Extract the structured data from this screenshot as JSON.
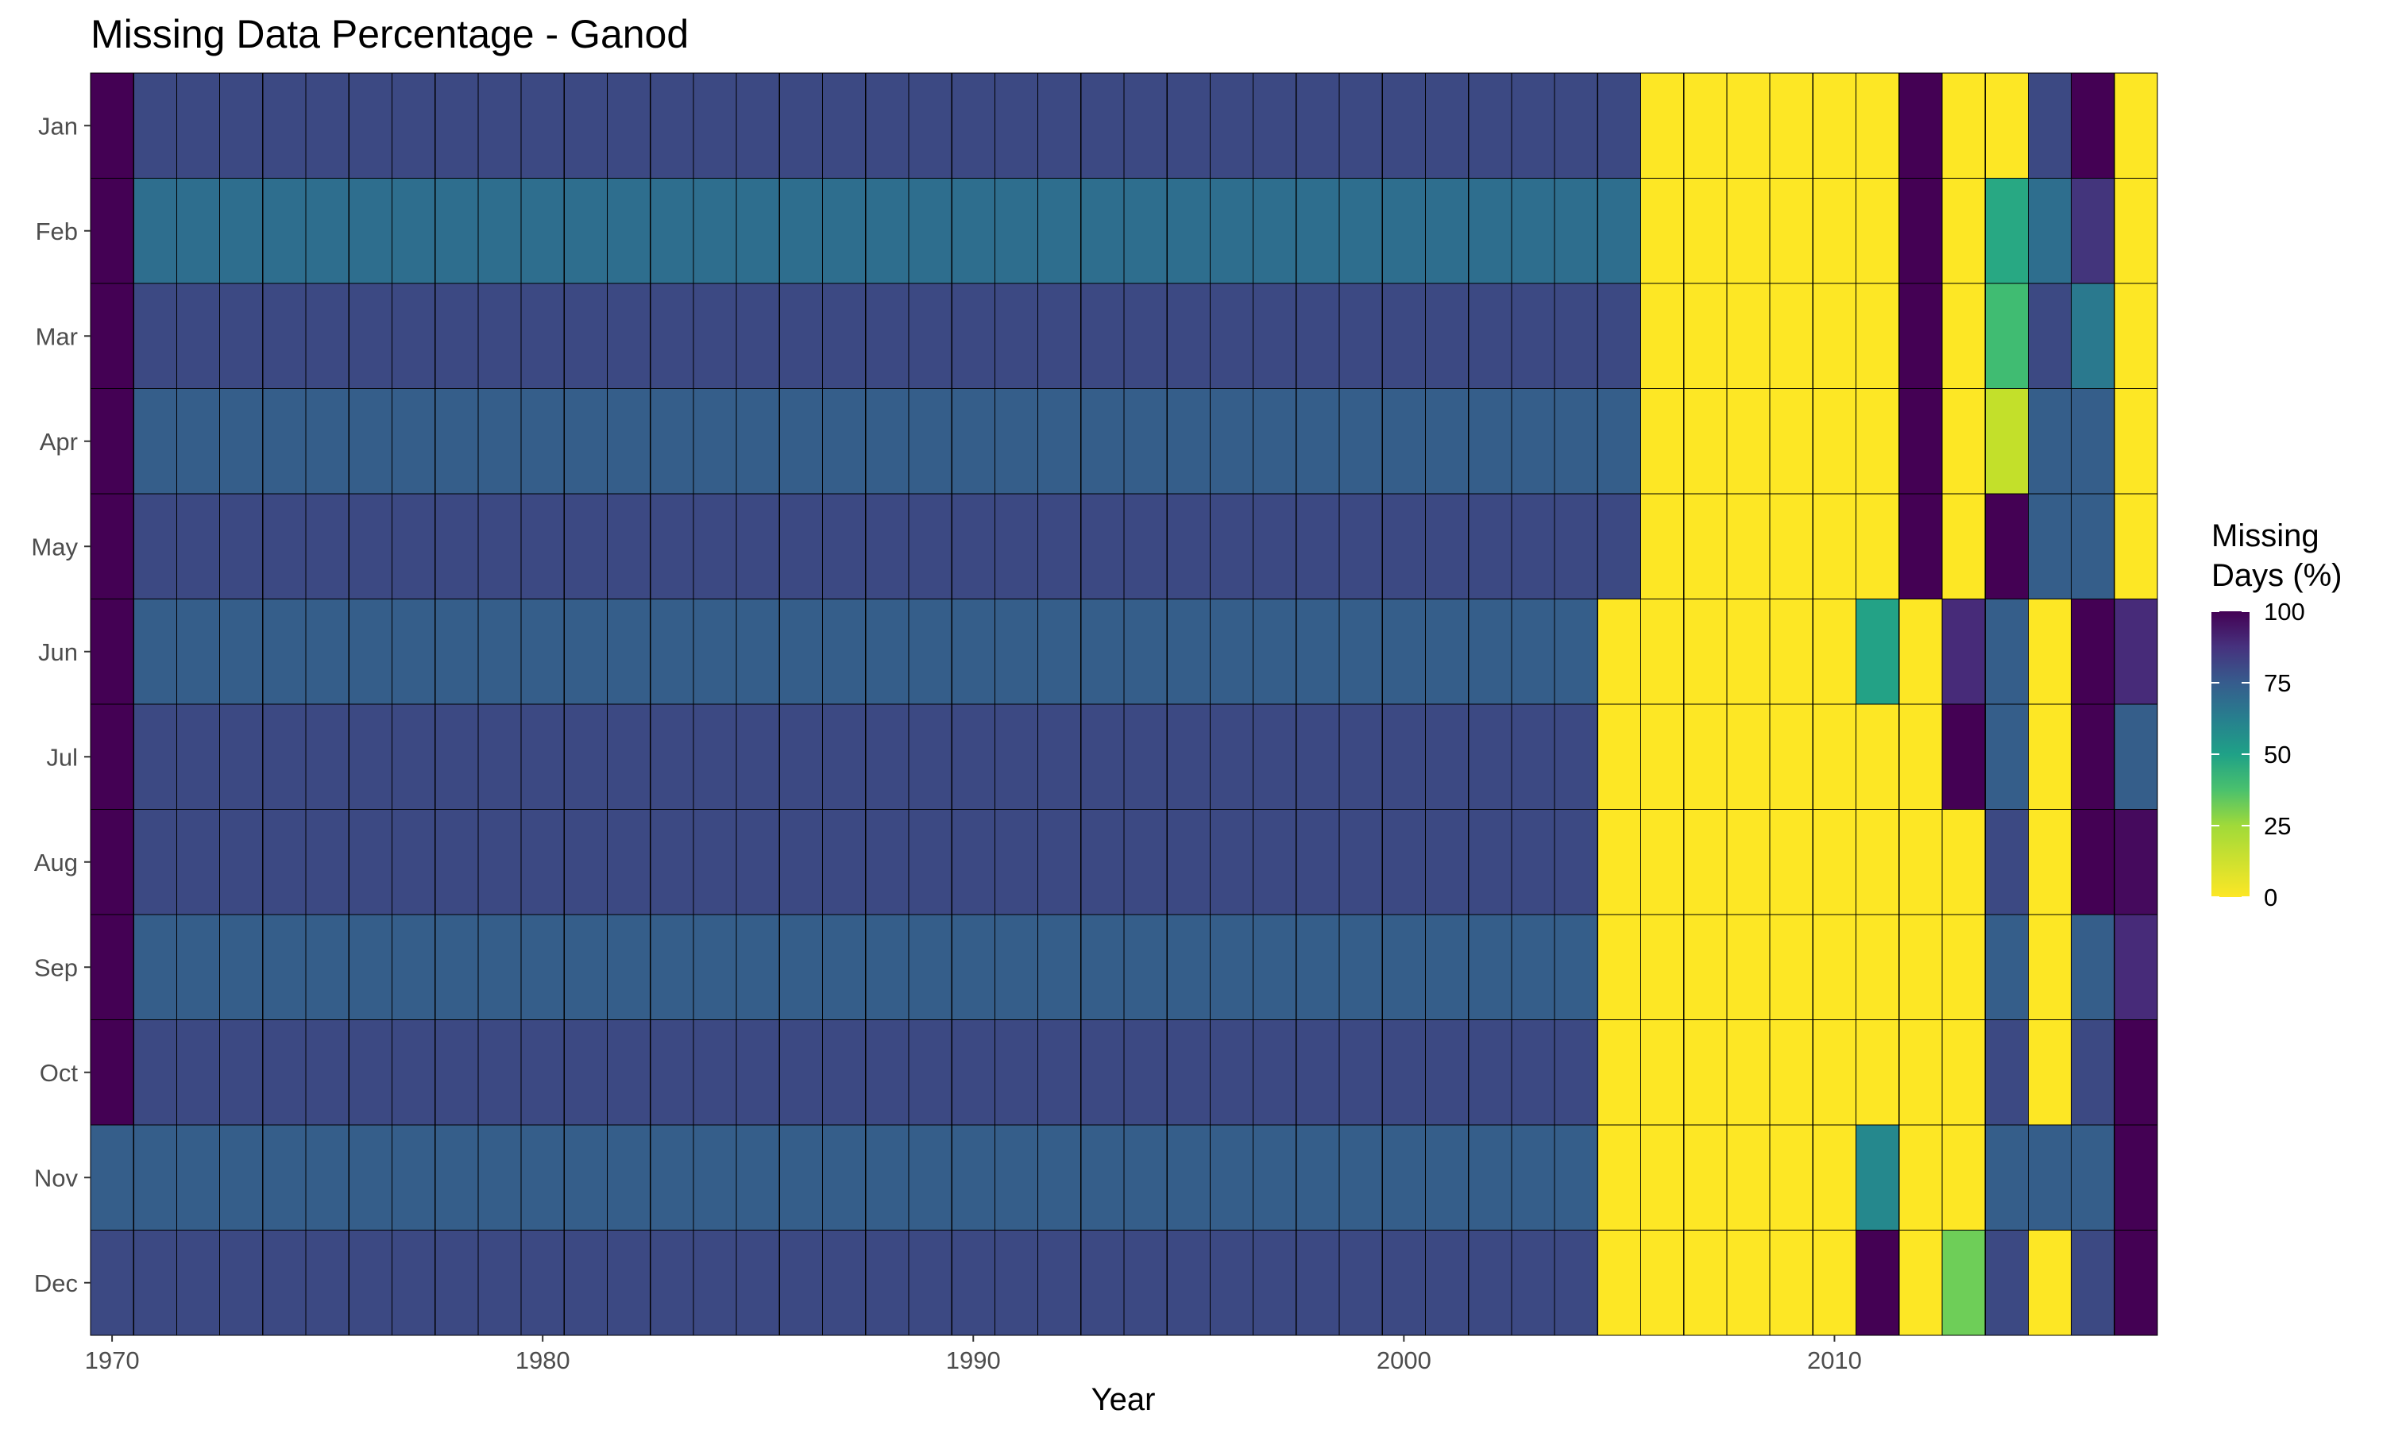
{
  "chart_data": {
    "type": "heatmap",
    "title": "Missing Data Percentage - Ganod",
    "xlabel": "Year",
    "ylabel": "",
    "x_ticks": [
      1970,
      1980,
      1990,
      2000,
      2010
    ],
    "y_categories": [
      "Jan",
      "Feb",
      "Mar",
      "Apr",
      "May",
      "Jun",
      "Jul",
      "Aug",
      "Sep",
      "Oct",
      "Nov",
      "Dec"
    ],
    "x_range": [
      1970,
      2017
    ],
    "legend": {
      "title_lines": [
        "Missing",
        "Days (%)"
      ],
      "ticks": [
        100,
        75,
        50,
        25,
        0
      ],
      "range": [
        0,
        100
      ],
      "palette": "viridis (reversed)",
      "placement": "right"
    },
    "cells_by_month": {
      "Jan": [
        100,
        81,
        81,
        81,
        81,
        81,
        81,
        81,
        81,
        81,
        81,
        81,
        81,
        81,
        81,
        81,
        81,
        81,
        81,
        81,
        81,
        81,
        81,
        81,
        81,
        81,
        81,
        81,
        81,
        81,
        81,
        81,
        81,
        81,
        81,
        81,
        0,
        0,
        0,
        0,
        0,
        0,
        100,
        0,
        0,
        81,
        100,
        0
      ],
      "Feb": [
        100,
        72,
        72,
        72,
        72,
        72,
        72,
        72,
        72,
        72,
        72,
        72,
        72,
        72,
        72,
        72,
        72,
        72,
        72,
        72,
        72,
        72,
        72,
        72,
        72,
        72,
        72,
        72,
        72,
        72,
        72,
        72,
        72,
        72,
        72,
        72,
        0,
        0,
        0,
        0,
        0,
        0,
        100,
        0,
        45,
        72,
        85,
        0
      ],
      "Mar": [
        100,
        81,
        81,
        81,
        81,
        81,
        81,
        81,
        81,
        81,
        81,
        81,
        81,
        81,
        81,
        81,
        81,
        81,
        81,
        81,
        81,
        81,
        81,
        81,
        81,
        81,
        81,
        81,
        81,
        81,
        81,
        81,
        81,
        81,
        81,
        81,
        0,
        0,
        0,
        0,
        0,
        0,
        100,
        0,
        35,
        81,
        67,
        0
      ],
      "Apr": [
        100,
        77,
        77,
        77,
        77,
        77,
        77,
        77,
        77,
        77,
        77,
        77,
        77,
        77,
        77,
        77,
        77,
        77,
        77,
        77,
        77,
        77,
        77,
        77,
        77,
        77,
        77,
        77,
        77,
        77,
        77,
        77,
        77,
        77,
        77,
        77,
        0,
        0,
        0,
        0,
        0,
        0,
        100,
        0,
        10,
        77,
        77,
        0
      ],
      "May": [
        100,
        81,
        81,
        81,
        81,
        81,
        81,
        81,
        81,
        81,
        81,
        81,
        81,
        81,
        81,
        81,
        81,
        81,
        81,
        81,
        81,
        81,
        81,
        81,
        81,
        81,
        81,
        81,
        81,
        81,
        81,
        81,
        81,
        81,
        81,
        81,
        0,
        0,
        0,
        0,
        0,
        0,
        100,
        0,
        100,
        77,
        77,
        0
      ],
      "Jun": [
        100,
        77,
        77,
        77,
        77,
        77,
        77,
        77,
        77,
        77,
        77,
        77,
        77,
        77,
        77,
        77,
        77,
        77,
        77,
        77,
        77,
        77,
        77,
        77,
        77,
        77,
        77,
        77,
        77,
        77,
        77,
        77,
        77,
        77,
        77,
        0,
        0,
        0,
        0,
        0,
        0,
        48,
        0,
        87,
        77,
        0,
        100,
        87
      ],
      "Jul": [
        100,
        81,
        81,
        81,
        81,
        81,
        81,
        81,
        81,
        81,
        81,
        81,
        81,
        81,
        81,
        81,
        81,
        81,
        81,
        81,
        81,
        81,
        81,
        81,
        81,
        81,
        81,
        81,
        81,
        81,
        81,
        81,
        81,
        81,
        81,
        0,
        0,
        0,
        0,
        0,
        0,
        0,
        0,
        100,
        77,
        0,
        100,
        77
      ],
      "Aug": [
        100,
        81,
        81,
        81,
        81,
        81,
        81,
        81,
        81,
        81,
        81,
        81,
        81,
        81,
        81,
        81,
        81,
        81,
        81,
        81,
        81,
        81,
        81,
        81,
        81,
        81,
        81,
        81,
        81,
        81,
        81,
        81,
        81,
        81,
        81,
        0,
        0,
        0,
        0,
        0,
        0,
        0,
        0,
        0,
        81,
        0,
        100,
        97
      ],
      "Sep": [
        100,
        77,
        77,
        77,
        77,
        77,
        77,
        77,
        77,
        77,
        77,
        77,
        77,
        77,
        77,
        77,
        77,
        77,
        77,
        77,
        77,
        77,
        77,
        77,
        77,
        77,
        77,
        77,
        77,
        77,
        77,
        77,
        77,
        77,
        77,
        0,
        0,
        0,
        0,
        0,
        0,
        0,
        0,
        0,
        77,
        0,
        77,
        87
      ],
      "Oct": [
        100,
        81,
        81,
        81,
        81,
        81,
        81,
        81,
        81,
        81,
        81,
        81,
        81,
        81,
        81,
        81,
        81,
        81,
        81,
        81,
        81,
        81,
        81,
        81,
        81,
        81,
        81,
        81,
        81,
        81,
        81,
        81,
        81,
        81,
        81,
        0,
        0,
        0,
        0,
        0,
        0,
        0,
        0,
        0,
        81,
        0,
        81,
        100
      ],
      "Nov": [
        77,
        77,
        77,
        77,
        77,
        77,
        77,
        77,
        77,
        77,
        77,
        77,
        77,
        77,
        77,
        77,
        77,
        77,
        77,
        77,
        77,
        77,
        77,
        77,
        77,
        77,
        77,
        77,
        77,
        77,
        77,
        77,
        77,
        77,
        77,
        0,
        0,
        0,
        0,
        0,
        0,
        60,
        0,
        0,
        77,
        77,
        77,
        100
      ],
      "Dec": [
        81,
        81,
        81,
        81,
        81,
        81,
        81,
        81,
        81,
        81,
        81,
        81,
        81,
        81,
        81,
        81,
        81,
        81,
        81,
        81,
        81,
        81,
        81,
        81,
        81,
        81,
        81,
        81,
        81,
        81,
        81,
        81,
        81,
        81,
        81,
        0,
        0,
        0,
        0,
        0,
        0,
        100,
        0,
        25,
        81,
        0,
        81,
        100
      ]
    }
  }
}
